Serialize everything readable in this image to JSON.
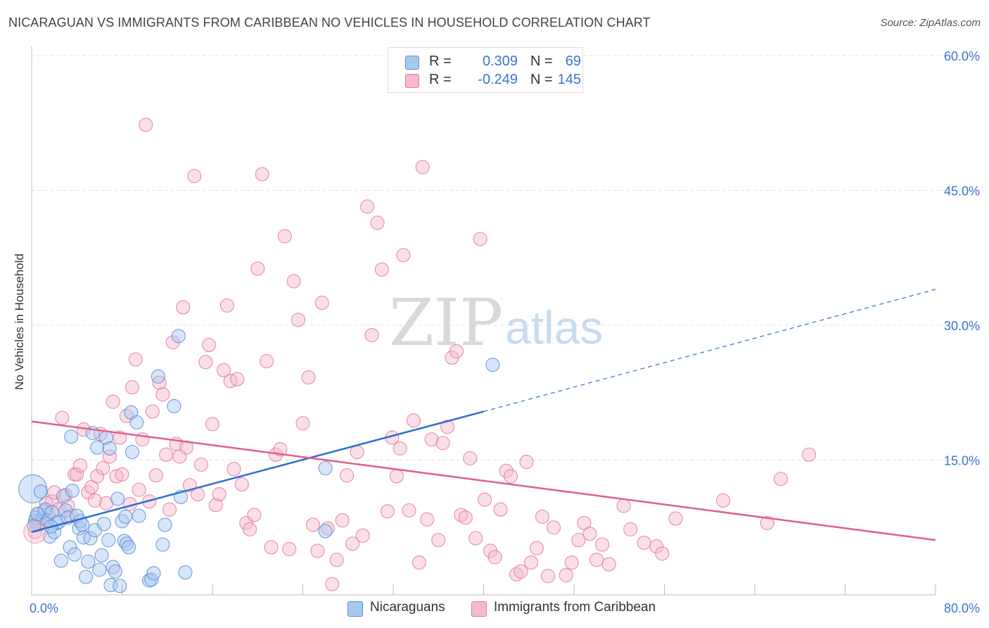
{
  "title": "NICARAGUAN VS IMMIGRANTS FROM CARIBBEAN NO VEHICLES IN HOUSEHOLD CORRELATION CHART",
  "source": "Source: ZipAtlas.com",
  "watermark": {
    "zip": "ZIP",
    "atlas": "atlas"
  },
  "legend": {
    "rows": [
      {
        "r_label": "R =",
        "r_value": "0.309",
        "n_label": "N =",
        "n_value": "69",
        "color": "#a9c8f1"
      },
      {
        "r_label": "R =",
        "r_value": "-0.249",
        "n_label": "N =",
        "n_value": "145",
        "color": "#f6b8cb"
      }
    ]
  },
  "bottom_legend": [
    {
      "label": "Nicaraguans",
      "color": "#a9c8f1"
    },
    {
      "label": "Immigrants from Caribbean",
      "color": "#f6b8cb"
    }
  ],
  "chart_data": {
    "type": "scatter",
    "title": "NICARAGUAN VS IMMIGRANTS FROM CARIBBEAN NO VEHICLES IN HOUSEHOLD CORRELATION CHART",
    "xlabel": "",
    "ylabel": "No Vehicles in Household",
    "xlim": [
      0,
      80
    ],
    "ylim": [
      0,
      60
    ],
    "x_tick_labels": {
      "0": "0.0%",
      "80": "80.0%"
    },
    "y_ticks": [
      15,
      30,
      45,
      60
    ],
    "y_tick_labels": [
      "15.0%",
      "30.0%",
      "45.0%",
      "60.0%"
    ],
    "grid": true,
    "series": [
      {
        "name": "Nicaraguans",
        "color": "#5b8fd6",
        "fill": "#a9c8f1",
        "trend": {
          "x0": 0,
          "y0": 7.0,
          "x1": 40,
          "y1": 20.4,
          "dash_to_x": 80,
          "dash_to_y": 34.0,
          "color": "#2f6fd1"
        },
        "points": [
          [
            0.1,
            11.8
          ],
          [
            0.3,
            8.2
          ],
          [
            0.4,
            8.6
          ],
          [
            0.6,
            7.8
          ],
          [
            0.8,
            11.5
          ],
          [
            1.0,
            8.5
          ],
          [
            1.1,
            9.3
          ],
          [
            1.2,
            9.5
          ],
          [
            1.4,
            8.3
          ],
          [
            1.6,
            6.5
          ],
          [
            1.8,
            9.2
          ],
          [
            2.0,
            7.0
          ],
          [
            2.2,
            8.0
          ],
          [
            2.4,
            8.1
          ],
          [
            2.6,
            3.8
          ],
          [
            2.8,
            11.0
          ],
          [
            3.0,
            9.4
          ],
          [
            3.2,
            8.6
          ],
          [
            3.4,
            5.3
          ],
          [
            3.6,
            11.6
          ],
          [
            3.8,
            4.5
          ],
          [
            3.5,
            17.6
          ],
          [
            4.0,
            8.8
          ],
          [
            4.2,
            7.4
          ],
          [
            4.3,
            8.2
          ],
          [
            4.5,
            7.8
          ],
          [
            4.6,
            6.4
          ],
          [
            4.8,
            2.0
          ],
          [
            5.0,
            3.7
          ],
          [
            5.2,
            6.3
          ],
          [
            5.4,
            18.0
          ],
          [
            5.6,
            7.2
          ],
          [
            5.8,
            16.4
          ],
          [
            6.0,
            2.8
          ],
          [
            6.2,
            4.4
          ],
          [
            6.4,
            7.9
          ],
          [
            6.6,
            17.5
          ],
          [
            6.8,
            6.1
          ],
          [
            6.9,
            16.3
          ],
          [
            7.0,
            1.1
          ],
          [
            7.2,
            3.1
          ],
          [
            7.4,
            2.6
          ],
          [
            7.6,
            10.7
          ],
          [
            7.8,
            1.0
          ],
          [
            8.0,
            8.2
          ],
          [
            8.2,
            6.0
          ],
          [
            8.3,
            8.7
          ],
          [
            8.4,
            5.7
          ],
          [
            8.6,
            5.3
          ],
          [
            8.8,
            20.3
          ],
          [
            8.9,
            15.9
          ],
          [
            9.3,
            19.2
          ],
          [
            9.5,
            8.8
          ],
          [
            10.4,
            1.6
          ],
          [
            10.6,
            1.7
          ],
          [
            10.8,
            2.4
          ],
          [
            11.2,
            24.3
          ],
          [
            11.6,
            5.6
          ],
          [
            11.8,
            7.8
          ],
          [
            12.6,
            21.0
          ],
          [
            13.0,
            28.8
          ],
          [
            13.2,
            10.9
          ],
          [
            13.6,
            2.5
          ],
          [
            26.0,
            14.1
          ],
          [
            26.0,
            7.1
          ],
          [
            40.8,
            25.6
          ],
          [
            0.2,
            7.7
          ],
          [
            0.5,
            9.0
          ],
          [
            1.7,
            7.6
          ]
        ]
      },
      {
        "name": "Immigrants from Caribbean",
        "color": "#e27a9c",
        "fill": "#f6b8cb",
        "trend": {
          "x0": 0,
          "y0": 19.3,
          "x1": 80,
          "y1": 6.1,
          "color": "#e05f8e"
        },
        "points": [
          [
            0.3,
            7.0
          ],
          [
            0.6,
            9.0
          ],
          [
            1.0,
            8.2
          ],
          [
            1.3,
            10.2
          ],
          [
            1.5,
            9.0
          ],
          [
            1.8,
            10.4
          ],
          [
            2.0,
            11.4
          ],
          [
            2.4,
            9.5
          ],
          [
            2.7,
            19.7
          ],
          [
            3.0,
            11.1
          ],
          [
            3.2,
            9.9
          ],
          [
            3.5,
            8.8
          ],
          [
            3.8,
            13.4
          ],
          [
            4.0,
            13.4
          ],
          [
            4.3,
            14.4
          ],
          [
            4.6,
            18.4
          ],
          [
            5.0,
            11.4
          ],
          [
            5.3,
            12.0
          ],
          [
            5.6,
            10.5
          ],
          [
            5.8,
            13.2
          ],
          [
            6.1,
            17.9
          ],
          [
            6.3,
            14.1
          ],
          [
            6.6,
            10.2
          ],
          [
            6.9,
            15.4
          ],
          [
            7.2,
            21.5
          ],
          [
            7.5,
            13.2
          ],
          [
            7.8,
            17.5
          ],
          [
            8.0,
            13.4
          ],
          [
            8.4,
            19.9
          ],
          [
            8.7,
            10.1
          ],
          [
            8.9,
            23.1
          ],
          [
            9.2,
            26.2
          ],
          [
            9.5,
            11.7
          ],
          [
            9.8,
            17.3
          ],
          [
            10.1,
            52.3
          ],
          [
            10.4,
            10.4
          ],
          [
            10.7,
            20.4
          ],
          [
            11.0,
            13.3
          ],
          [
            11.3,
            23.6
          ],
          [
            11.6,
            22.3
          ],
          [
            11.9,
            15.6
          ],
          [
            12.2,
            9.5
          ],
          [
            12.5,
            28.1
          ],
          [
            12.8,
            16.8
          ],
          [
            13.1,
            15.4
          ],
          [
            13.4,
            32.0
          ],
          [
            13.7,
            16.4
          ],
          [
            14.0,
            12.2
          ],
          [
            14.4,
            46.6
          ],
          [
            14.7,
            11.2
          ],
          [
            15.0,
            14.5
          ],
          [
            15.4,
            25.9
          ],
          [
            15.7,
            27.8
          ],
          [
            16.0,
            19.0
          ],
          [
            16.3,
            10.0
          ],
          [
            16.6,
            11.2
          ],
          [
            17.0,
            25.0
          ],
          [
            17.3,
            32.2
          ],
          [
            17.6,
            23.8
          ],
          [
            17.9,
            14.0
          ],
          [
            18.2,
            24.0
          ],
          [
            18.6,
            12.3
          ],
          [
            19.0,
            8.0
          ],
          [
            19.3,
            7.3
          ],
          [
            19.7,
            8.9
          ],
          [
            20.0,
            36.3
          ],
          [
            20.4,
            46.8
          ],
          [
            20.8,
            26.0
          ],
          [
            21.2,
            5.3
          ],
          [
            21.6,
            15.6
          ],
          [
            22.0,
            16.2
          ],
          [
            22.4,
            39.9
          ],
          [
            22.8,
            5.1
          ],
          [
            23.2,
            34.9
          ],
          [
            23.6,
            30.6
          ],
          [
            24.0,
            19.1
          ],
          [
            24.5,
            24.2
          ],
          [
            24.9,
            7.8
          ],
          [
            25.3,
            4.9
          ],
          [
            25.7,
            32.5
          ],
          [
            26.2,
            7.4
          ],
          [
            26.6,
            1.2
          ],
          [
            27.0,
            3.9
          ],
          [
            27.5,
            8.3
          ],
          [
            27.9,
            13.3
          ],
          [
            28.4,
            5.7
          ],
          [
            28.8,
            15.9
          ],
          [
            29.3,
            6.6
          ],
          [
            29.7,
            43.2
          ],
          [
            30.1,
            28.9
          ],
          [
            30.6,
            41.4
          ],
          [
            31.0,
            36.2
          ],
          [
            31.5,
            9.3
          ],
          [
            31.9,
            17.5
          ],
          [
            32.3,
            13.2
          ],
          [
            32.6,
            16.3
          ],
          [
            32.9,
            37.8
          ],
          [
            33.4,
            9.4
          ],
          [
            33.8,
            19.4
          ],
          [
            34.3,
            3.6
          ],
          [
            34.6,
            47.6
          ],
          [
            35.0,
            8.4
          ],
          [
            35.4,
            17.3
          ],
          [
            36.0,
            6.1
          ],
          [
            36.4,
            16.9
          ],
          [
            36.8,
            18.7
          ],
          [
            37.2,
            26.4
          ],
          [
            37.6,
            27.1
          ],
          [
            38.0,
            8.9
          ],
          [
            38.4,
            8.6
          ],
          [
            38.8,
            15.2
          ],
          [
            39.3,
            6.3
          ],
          [
            39.7,
            39.6
          ],
          [
            40.1,
            10.6
          ],
          [
            40.6,
            4.9
          ],
          [
            41.0,
            4.2
          ],
          [
            41.5,
            9.5
          ],
          [
            42.0,
            13.8
          ],
          [
            42.4,
            13.2
          ],
          [
            42.9,
            2.3
          ],
          [
            43.3,
            2.6
          ],
          [
            43.8,
            14.8
          ],
          [
            44.2,
            3.6
          ],
          [
            44.7,
            5.2
          ],
          [
            45.2,
            8.7
          ],
          [
            45.7,
            2.1
          ],
          [
            46.2,
            7.5
          ],
          [
            47.3,
            2.2
          ],
          [
            47.8,
            3.6
          ],
          [
            48.4,
            6.1
          ],
          [
            48.9,
            8.0
          ],
          [
            49.4,
            6.8
          ],
          [
            50.0,
            3.9
          ],
          [
            50.5,
            5.6
          ],
          [
            51.1,
            3.4
          ],
          [
            52.4,
            9.9
          ],
          [
            53.0,
            7.3
          ],
          [
            54.2,
            5.8
          ],
          [
            55.3,
            5.4
          ],
          [
            55.8,
            4.6
          ],
          [
            57.0,
            8.5
          ],
          [
            61.2,
            10.5
          ],
          [
            65.1,
            8.0
          ],
          [
            66.3,
            12.9
          ],
          [
            68.8,
            15.6
          ]
        ]
      }
    ]
  }
}
